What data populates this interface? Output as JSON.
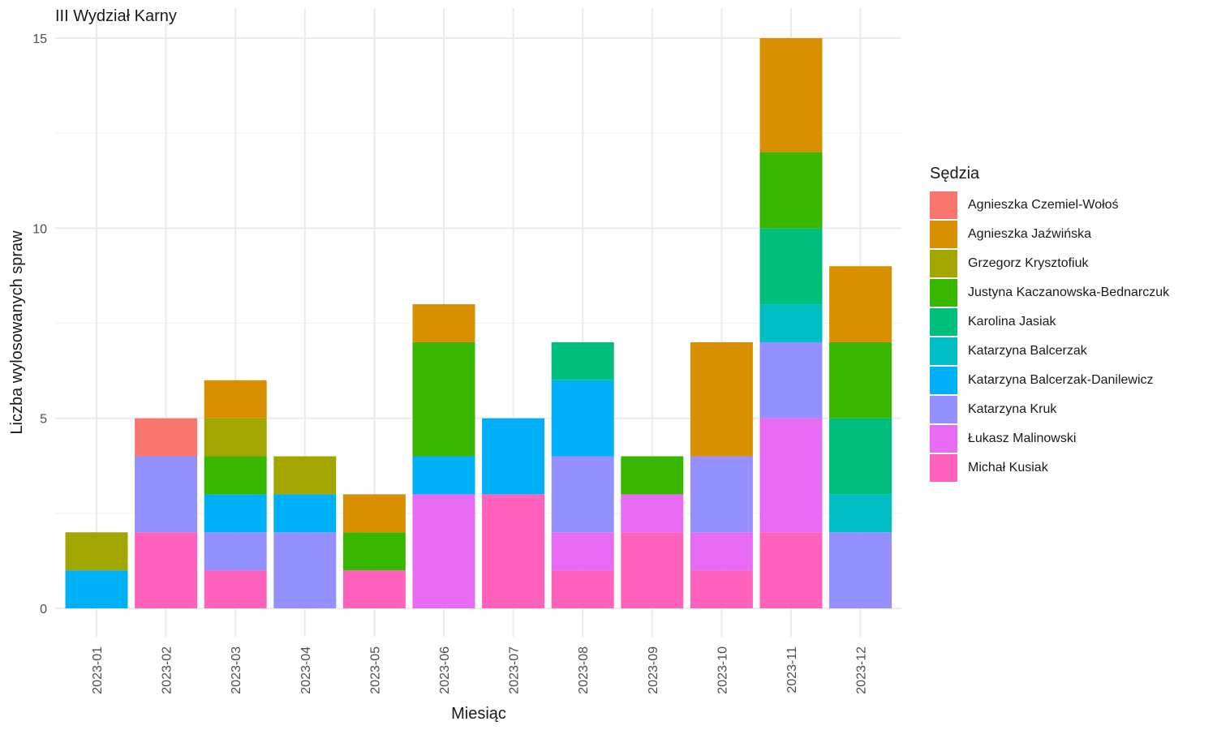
{
  "chart_data": {
    "type": "bar",
    "stacked": true,
    "title": "III Wydział Karny",
    "xlabel": "Miesiąc",
    "ylabel": "Liczba wylosowanych spraw",
    "ylim": [
      0,
      15
    ],
    "yticks": [
      0,
      5,
      10,
      15
    ],
    "grid": true,
    "legend_position": "right",
    "legend_title": "Sędzia",
    "categories": [
      "2023-01",
      "2023-02",
      "2023-03",
      "2023-04",
      "2023-05",
      "2023-06",
      "2023-07",
      "2023-08",
      "2023-09",
      "2023-10",
      "2023-11",
      "2023-12"
    ],
    "series": [
      {
        "name": "Agnieszka Czemiel-Wołoś",
        "color": "#F8766D",
        "values": [
          0,
          1,
          0,
          0,
          0,
          0,
          0,
          0,
          0,
          0,
          0,
          0
        ]
      },
      {
        "name": "Agnieszka Jaźwińska",
        "color": "#D89000",
        "values": [
          0,
          0,
          1,
          0,
          1,
          1,
          0,
          0,
          0,
          3,
          3,
          2
        ]
      },
      {
        "name": "Grzegorz Krysztofiuk",
        "color": "#A3A500",
        "values": [
          1,
          0,
          1,
          1,
          0,
          0,
          0,
          0,
          0,
          0,
          0,
          0
        ]
      },
      {
        "name": "Justyna Kaczanowska-Bednarczuk",
        "color": "#39B600",
        "values": [
          0,
          0,
          1,
          0,
          1,
          3,
          0,
          0,
          1,
          0,
          2,
          2
        ]
      },
      {
        "name": "Karolina Jasiak",
        "color": "#00BF7D",
        "values": [
          0,
          0,
          0,
          0,
          0,
          0,
          0,
          1,
          0,
          0,
          2,
          2
        ]
      },
      {
        "name": "Katarzyna Balcerzak",
        "color": "#00BFC4",
        "values": [
          0,
          0,
          0,
          0,
          0,
          0,
          0,
          0,
          0,
          0,
          1,
          1
        ]
      },
      {
        "name": "Katarzyna Balcerzak-Danilewicz",
        "color": "#00B0F6",
        "values": [
          1,
          0,
          1,
          1,
          0,
          1,
          2,
          2,
          0,
          0,
          0,
          0
        ]
      },
      {
        "name": "Katarzyna Kruk",
        "color": "#9590FF",
        "values": [
          0,
          2,
          1,
          2,
          0,
          0,
          0,
          2,
          0,
          2,
          2,
          2
        ]
      },
      {
        "name": "Łukasz Malinowski",
        "color": "#E76BF3",
        "values": [
          0,
          0,
          0,
          0,
          0,
          3,
          0,
          1,
          1,
          1,
          3,
          0
        ]
      },
      {
        "name": "Michał Kusiak",
        "color": "#FF62BC",
        "values": [
          0,
          2,
          1,
          0,
          1,
          0,
          3,
          1,
          2,
          1,
          2,
          0
        ]
      }
    ]
  }
}
